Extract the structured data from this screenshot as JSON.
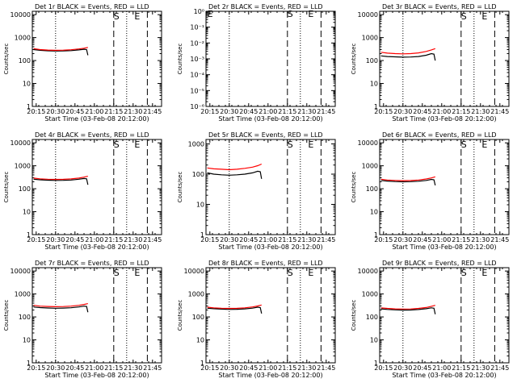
{
  "chart_data": [
    {
      "type": "line",
      "title": "Det 1r BLACK = Events, RED = LLD",
      "xlabel": "Start Time (03-Feb-08 20:12:00)",
      "ylabel": "Counts/sec",
      "x_tick_labels": [
        "20:15",
        "20:30",
        "20:45",
        "21:00",
        "21:15",
        "21:30",
        "21:45"
      ],
      "x_ticks_min": [
        3,
        18,
        33,
        48,
        63,
        78,
        93
      ],
      "xlim_min": [
        0,
        100
      ],
      "y_log": true,
      "y_ticks": [
        1,
        10,
        100,
        1000,
        10000
      ],
      "y_tick_labels": [
        "1",
        "10",
        "100",
        "1000",
        "10000"
      ],
      "ylim": [
        1,
        14000
      ],
      "dotted_lines_min": [
        18,
        73
      ],
      "dashed_lines_min": [
        63,
        89
      ],
      "markers": [
        {
          "label": "S",
          "x_min": 63,
          "y": 13000
        },
        {
          "label": "E",
          "x_min": 79,
          "y": 13000
        }
      ],
      "series": [
        {
          "color": "#000000",
          "x_min": [
            1,
            6,
            12,
            18,
            24,
            30,
            36,
            40,
            42,
            43
          ],
          "values": [
            300,
            280,
            265,
            260,
            262,
            270,
            290,
            310,
            300,
            170
          ]
        },
        {
          "color": "#ff0000",
          "x_min": [
            1,
            6,
            12,
            18,
            24,
            30,
            36,
            40,
            43
          ],
          "values": [
            330,
            300,
            285,
            280,
            283,
            295,
            320,
            345,
            370
          ]
        }
      ]
    },
    {
      "type": "line",
      "title": "Det 2r BLACK = Events, RED = LLD",
      "xlabel": "Start Time (03-Feb-08 20:12:00)",
      "ylabel": "Counts/sec",
      "x_tick_labels": [
        "20:15",
        "20:30",
        "20:45",
        "21:00",
        "21:15",
        "21:30",
        "21:45"
      ],
      "x_ticks_min": [
        3,
        18,
        33,
        48,
        63,
        78,
        93
      ],
      "xlim_min": [
        0,
        100
      ],
      "y_log": true,
      "y_ticks": [
        1e-06,
        1e-05,
        0.0001,
        0.001,
        0.01,
        0.1,
        1
      ],
      "y_tick_labels": [
        "10⁻⁶",
        "10⁻⁵",
        "10⁻⁴",
        "10⁻³",
        "10⁻²",
        "10⁻¹",
        "10⁰"
      ],
      "ylim": [
        1e-06,
        1
      ],
      "dotted_lines_min": [
        18,
        73
      ],
      "dashed_lines_min": [
        63,
        89
      ],
      "markers": [
        {
          "label": "E",
          "x_min": 1,
          "y": 1.3
        },
        {
          "label": "S",
          "x_min": 63,
          "y": 1.3
        },
        {
          "label": "E",
          "x_min": 79,
          "y": 1.3
        }
      ],
      "series": []
    },
    {
      "type": "line",
      "title": "Det 3r BLACK = Events, RED = LLD",
      "xlabel": "Start Time (03-Feb-08 20:12:00)",
      "ylabel": "Counts/sec",
      "x_tick_labels": [
        "20:15",
        "20:30",
        "20:45",
        "21:00",
        "21:15",
        "21:30",
        "21:45"
      ],
      "x_ticks_min": [
        3,
        18,
        33,
        48,
        63,
        78,
        93
      ],
      "xlim_min": [
        0,
        100
      ],
      "y_log": true,
      "y_ticks": [
        1,
        10,
        100,
        1000,
        10000
      ],
      "y_tick_labels": [
        "1",
        "10",
        "100",
        "1000",
        "10000"
      ],
      "ylim": [
        1,
        14000
      ],
      "dotted_lines_min": [
        18,
        73
      ],
      "dashed_lines_min": [
        63,
        89
      ],
      "markers": [
        {
          "label": "S",
          "x_min": 63,
          "y": 13000
        },
        {
          "label": "E",
          "x_min": 79,
          "y": 13000
        }
      ],
      "series": [
        {
          "color": "#000000",
          "x_min": [
            1,
            6,
            12,
            18,
            24,
            30,
            36,
            40,
            42,
            43
          ],
          "values": [
            160,
            150,
            145,
            140,
            142,
            150,
            170,
            200,
            190,
            100
          ]
        },
        {
          "color": "#ff0000",
          "x_min": [
            1,
            6,
            12,
            18,
            24,
            30,
            36,
            40,
            43
          ],
          "values": [
            230,
            210,
            200,
            195,
            200,
            215,
            250,
            290,
            330
          ]
        }
      ]
    },
    {
      "type": "line",
      "title": "Det 4r BLACK = Events, RED = LLD",
      "xlabel": "Start Time (03-Feb-08 20:12:00)",
      "ylabel": "Counts/sec",
      "x_tick_labels": [
        "20:15",
        "20:30",
        "20:45",
        "21:00",
        "21:15",
        "21:30",
        "21:45"
      ],
      "x_ticks_min": [
        3,
        18,
        33,
        48,
        63,
        78,
        93
      ],
      "xlim_min": [
        0,
        100
      ],
      "y_log": true,
      "y_ticks": [
        1,
        10,
        100,
        1000,
        10000
      ],
      "y_tick_labels": [
        "1",
        "10",
        "100",
        "1000",
        "10000"
      ],
      "ylim": [
        1,
        14000
      ],
      "dotted_lines_min": [
        18,
        73
      ],
      "dashed_lines_min": [
        63,
        89
      ],
      "markers": [
        {
          "label": "S",
          "x_min": 63,
          "y": 13000
        },
        {
          "label": "E",
          "x_min": 79,
          "y": 13000
        }
      ],
      "series": [
        {
          "color": "#000000",
          "x_min": [
            1,
            6,
            12,
            18,
            24,
            30,
            36,
            40,
            42,
            43
          ],
          "values": [
            260,
            245,
            235,
            230,
            232,
            240,
            260,
            280,
            270,
            150
          ]
        },
        {
          "color": "#ff0000",
          "x_min": [
            1,
            6,
            12,
            18,
            24,
            30,
            36,
            40,
            43
          ],
          "values": [
            290,
            270,
            260,
            255,
            258,
            268,
            290,
            320,
            350
          ]
        }
      ]
    },
    {
      "type": "line",
      "title": "Det 5r BLACK = Events, RED = LLD",
      "xlabel": "Start Time (03-Feb-08 20:12:00)",
      "ylabel": "Counts/sec",
      "x_tick_labels": [
        "20:15",
        "20:30",
        "20:45",
        "21:00",
        "21:15",
        "21:30",
        "21:45"
      ],
      "x_ticks_min": [
        3,
        18,
        33,
        48,
        63,
        78,
        93
      ],
      "xlim_min": [
        0,
        100
      ],
      "y_log": true,
      "y_ticks": [
        1,
        10,
        100,
        1000
      ],
      "y_tick_labels": [
        "1",
        "10",
        "100",
        "1000"
      ],
      "ylim": [
        1,
        1400
      ],
      "dotted_lines_min": [
        18,
        73
      ],
      "dashed_lines_min": [
        63,
        89
      ],
      "markers": [
        {
          "label": "S",
          "x_min": 63,
          "y": 1300
        },
        {
          "label": "E",
          "x_min": 79,
          "y": 1300
        }
      ],
      "series": [
        {
          "color": "#000000",
          "x_min": [
            1,
            6,
            12,
            18,
            24,
            30,
            36,
            40,
            42,
            43
          ],
          "values": [
            110,
            100,
            95,
            92,
            95,
            100,
            110,
            125,
            120,
            70
          ]
        },
        {
          "color": "#ff0000",
          "x_min": [
            1,
            6,
            12,
            18,
            24,
            30,
            36,
            40,
            43
          ],
          "values": [
            160,
            150,
            145,
            140,
            145,
            155,
            170,
            190,
            215
          ]
        }
      ]
    },
    {
      "type": "line",
      "title": "Det 6r BLACK = Events, RED = LLD",
      "xlabel": "Start Time (03-Feb-08 20:12:00)",
      "ylabel": "Counts/sec",
      "x_tick_labels": [
        "20:15",
        "20:30",
        "20:45",
        "21:00",
        "21:15",
        "21:30",
        "21:45"
      ],
      "x_ticks_min": [
        3,
        18,
        33,
        48,
        63,
        78,
        93
      ],
      "xlim_min": [
        0,
        100
      ],
      "y_log": true,
      "y_ticks": [
        1,
        10,
        100,
        1000,
        10000
      ],
      "y_tick_labels": [
        "1",
        "10",
        "100",
        "1000",
        "10000"
      ],
      "ylim": [
        1,
        14000
      ],
      "dotted_lines_min": [
        18,
        73
      ],
      "dashed_lines_min": [
        63,
        89
      ],
      "markers": [
        {
          "label": "S",
          "x_min": 63,
          "y": 13000
        },
        {
          "label": "E",
          "x_min": 79,
          "y": 13000
        }
      ],
      "series": [
        {
          "color": "#000000",
          "x_min": [
            1,
            6,
            12,
            18,
            24,
            30,
            36,
            40,
            42,
            43
          ],
          "values": [
            230,
            215,
            205,
            200,
            203,
            212,
            230,
            255,
            245,
            140
          ]
        },
        {
          "color": "#ff0000",
          "x_min": [
            1,
            6,
            12,
            18,
            24,
            30,
            36,
            40,
            43
          ],
          "values": [
            260,
            240,
            230,
            225,
            228,
            240,
            265,
            295,
            330
          ]
        }
      ]
    },
    {
      "type": "line",
      "title": "Det 7r BLACK = Events, RED = LLD",
      "xlabel": "Start Time (03-Feb-08 20:12:00)",
      "ylabel": "Counts/sec",
      "x_tick_labels": [
        "20:15",
        "20:30",
        "20:45",
        "21:00",
        "21:15",
        "21:30",
        "21:45"
      ],
      "x_ticks_min": [
        3,
        18,
        33,
        48,
        63,
        78,
        93
      ],
      "xlim_min": [
        0,
        100
      ],
      "y_log": true,
      "y_ticks": [
        1,
        10,
        100,
        1000,
        10000
      ],
      "y_tick_labels": [
        "1",
        "10",
        "100",
        "1000",
        "10000"
      ],
      "ylim": [
        1,
        14000
      ],
      "dotted_lines_min": [
        18,
        73
      ],
      "dashed_lines_min": [
        63,
        89
      ],
      "markers": [
        {
          "label": "S",
          "x_min": 63,
          "y": 13000
        },
        {
          "label": "E",
          "x_min": 79,
          "y": 13000
        }
      ],
      "series": [
        {
          "color": "#000000",
          "x_min": [
            1,
            6,
            12,
            18,
            24,
            30,
            36,
            40,
            42,
            43
          ],
          "values": [
            270,
            255,
            245,
            240,
            243,
            252,
            272,
            295,
            285,
            160
          ]
        },
        {
          "color": "#ff0000",
          "x_min": [
            1,
            6,
            12,
            18,
            24,
            30,
            36,
            40,
            43
          ],
          "values": [
            320,
            295,
            285,
            280,
            283,
            295,
            320,
            350,
            380
          ]
        }
      ]
    },
    {
      "type": "line",
      "title": "Det 8r BLACK = Events, RED = LLD",
      "xlabel": "Start Time (03-Feb-08 20:12:00)",
      "ylabel": "Counts/sec",
      "x_tick_labels": [
        "20:15",
        "20:30",
        "20:45",
        "21:00",
        "21:15",
        "21:30",
        "21:45"
      ],
      "x_ticks_min": [
        3,
        18,
        33,
        48,
        63,
        78,
        93
      ],
      "xlim_min": [
        0,
        100
      ],
      "y_log": true,
      "y_ticks": [
        1,
        10,
        100,
        1000,
        10000
      ],
      "y_tick_labels": [
        "1",
        "10",
        "100",
        "1000",
        "10000"
      ],
      "ylim": [
        1,
        14000
      ],
      "dotted_lines_min": [
        18,
        73
      ],
      "dashed_lines_min": [
        63,
        89
      ],
      "markers": [
        {
          "label": "S",
          "x_min": 63,
          "y": 13000
        },
        {
          "label": "E",
          "x_min": 79,
          "y": 13000
        }
      ],
      "series": [
        {
          "color": "#000000",
          "x_min": [
            1,
            6,
            12,
            18,
            24,
            30,
            36,
            40,
            42,
            43
          ],
          "values": [
            240,
            228,
            218,
            212,
            215,
            224,
            242,
            265,
            255,
            140
          ]
        },
        {
          "color": "#ff0000",
          "x_min": [
            1,
            6,
            12,
            18,
            24,
            30,
            36,
            40,
            43
          ],
          "values": [
            265,
            250,
            240,
            235,
            238,
            250,
            272,
            300,
            330
          ]
        }
      ]
    },
    {
      "type": "line",
      "title": "Det 9r BLACK = Events, RED = LLD",
      "xlabel": "Start Time (03-Feb-08 20:12:00)",
      "ylabel": "Counts/sec",
      "x_tick_labels": [
        "20:15",
        "20:30",
        "20:45",
        "21:00",
        "21:15",
        "21:30",
        "21:45"
      ],
      "x_ticks_min": [
        3,
        18,
        33,
        48,
        63,
        78,
        93
      ],
      "xlim_min": [
        0,
        100
      ],
      "y_log": true,
      "y_ticks": [
        1,
        10,
        100,
        1000,
        10000
      ],
      "y_tick_labels": [
        "1",
        "10",
        "100",
        "1000",
        "10000"
      ],
      "ylim": [
        1,
        14000
      ],
      "dotted_lines_min": [
        18,
        73
      ],
      "dashed_lines_min": [
        63,
        89
      ],
      "markers": [
        {
          "label": "S",
          "x_min": 63,
          "y": 13000
        },
        {
          "label": "E",
          "x_min": 79,
          "y": 13000
        }
      ],
      "series": [
        {
          "color": "#000000",
          "x_min": [
            1,
            6,
            12,
            18,
            24,
            30,
            36,
            40,
            42,
            43
          ],
          "values": [
            225,
            212,
            203,
            198,
            200,
            210,
            228,
            250,
            240,
            130
          ]
        },
        {
          "color": "#ff0000",
          "x_min": [
            1,
            6,
            12,
            18,
            24,
            30,
            36,
            40,
            43
          ],
          "values": [
            250,
            235,
            225,
            220,
            223,
            235,
            258,
            290,
            320
          ]
        }
      ]
    }
  ]
}
